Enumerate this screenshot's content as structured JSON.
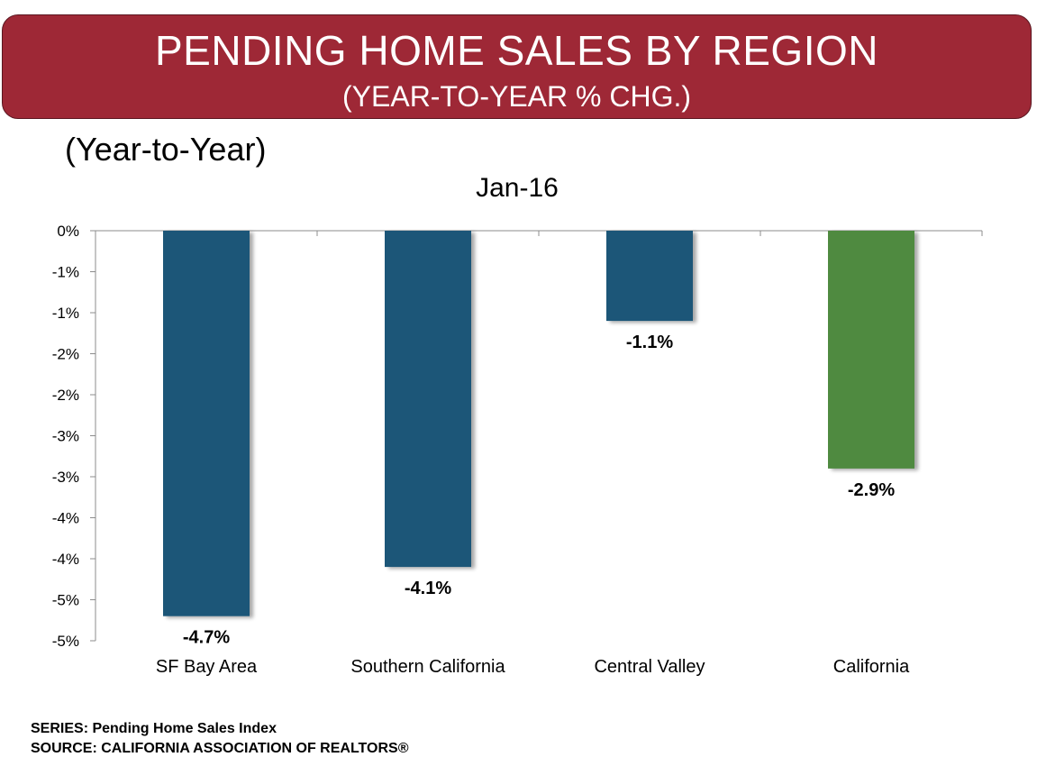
{
  "header": {
    "title": "PENDING HOME SALES BY REGION",
    "subtitle": "(YEAR-TO-YEAR % CHG.)"
  },
  "sub_label": "(Year-to-Year)",
  "footer": {
    "series": "SERIES: Pending Home Sales Index",
    "source": "SOURCE:  CALIFORNIA ASSOCIATION OF REALTORS®"
  },
  "colors": {
    "banner": "#9e2836",
    "region_bar": "#1f5678",
    "state_bar": "#4f8a41"
  },
  "chart_data": {
    "type": "bar",
    "title": "Jan-16",
    "xlabel": "",
    "ylabel": "",
    "categories": [
      "SF Bay Area",
      "Southern California",
      "Central Valley",
      "California"
    ],
    "series": [
      {
        "values": [
          -4.7,
          -4.1,
          -1.1,
          -2.9
        ],
        "data_labels": [
          "-4.7%",
          "-4.1%",
          "-1.1%",
          "-2.9%"
        ],
        "colors": [
          "#1f5678",
          "#1f5678",
          "#1f5678",
          "#4f8a41"
        ]
      }
    ],
    "ylim": [
      -5,
      0
    ],
    "yticks": [
      0,
      -0.5,
      -1,
      -1.5,
      -2,
      -2.5,
      -3,
      -3.5,
      -4,
      -4.5,
      -5
    ],
    "ytick_labels": [
      "0%",
      "-1%",
      "-1%",
      "-2%",
      "-2%",
      "-3%",
      "-3%",
      "-4%",
      "-4%",
      "-5%",
      "-5%"
    ],
    "grid": false,
    "legend": "none"
  }
}
